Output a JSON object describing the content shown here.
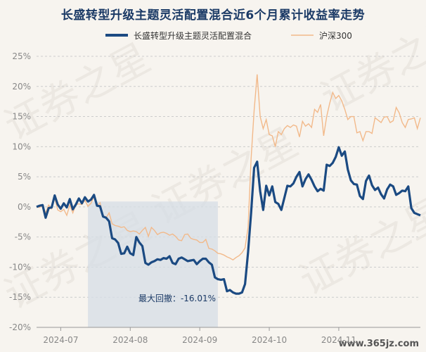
{
  "chart_data": {
    "type": "line",
    "title": "长盛转型升级主题灵活配置混合近6个月累计收益率走势",
    "ylim": [
      -20,
      25
    ],
    "yticks": [
      "25%",
      "20%",
      "15%",
      "10%",
      "5%",
      "0%",
      "-5%",
      "-10%",
      "-15%",
      "-20%"
    ],
    "ytick_values": [
      25,
      20,
      15,
      10,
      5,
      0,
      -5,
      -10,
      -15,
      -20
    ],
    "xtick_labels": [
      "2024-07",
      "2024-08",
      "2024-09",
      "2024-10",
      "2024-11"
    ],
    "xtick_positions": [
      8,
      31,
      54,
      77,
      100
    ],
    "x_count": 128,
    "grid": true,
    "legend_position": "top",
    "annotation": {
      "text": "最大回撤：-16.01%",
      "x_start": 17,
      "x_end": 60
    },
    "watermark": "证券之星",
    "watermark_corner": "www.365jz.com",
    "colors": {
      "fund": "#1b4a82",
      "index": "#f2b98a",
      "shade": "#d6dde6",
      "grid": "#cccccc"
    },
    "series": [
      {
        "name": "长盛转型升级主题灵活配置混合",
        "values": [
          0,
          0.2,
          0.3,
          -1.8,
          -0.2,
          -0.1,
          1.9,
          0.4,
          -0.3,
          0.6,
          -0.1,
          1.3,
          -0.4,
          0.4,
          1.4,
          0.6,
          1.6,
          0.9,
          1.2,
          2.0,
          0.2,
          0.1,
          -1.6,
          -1.8,
          -2.4,
          -5.2,
          -5.4,
          -6.0,
          -7.8,
          -7.7,
          -6.6,
          -7.7,
          -8.0,
          -5.0,
          -5.9,
          -6.5,
          -9.3,
          -9.6,
          -9.2,
          -9.0,
          -8.7,
          -8.8,
          -8.5,
          -8.6,
          -8.2,
          -9.3,
          -9.5,
          -8.6,
          -8.4,
          -8.7,
          -9.0,
          -8.9,
          -8.8,
          -9.5,
          -9.0,
          -8.6,
          -8.6,
          -9.2,
          -9.6,
          -11.7,
          -12.0,
          -12.1,
          -12.0,
          -14.0,
          -13.8,
          -14.2,
          -14.4,
          -14.4,
          -14.2,
          -12.8,
          -7.5,
          -1.0,
          6.5,
          7.5,
          2.6,
          -0.5,
          3.5,
          1.9,
          3.4,
          0.8,
          0.5,
          -0.5,
          1.5,
          3.5,
          3.4,
          3.9,
          5.0,
          5.8,
          3.4,
          4.6,
          5.4,
          4.5,
          3.4,
          2.6,
          3.0,
          2.7,
          7.0,
          6.8,
          7.3,
          8.3,
          9.9,
          8.5,
          9.2,
          6.2,
          4.4,
          3.8,
          3.7,
          1.8,
          1.3,
          4.3,
          5.2,
          3.6,
          2.8,
          3.2,
          2.1,
          1.4,
          2.9,
          3.7,
          3.4,
          2.0,
          2.3,
          2.7,
          2.6,
          3.4,
          -0.2,
          -1.0,
          -1.2,
          -1.4
        ]
      },
      {
        "name": "沪深300",
        "values": [
          0,
          -0.1,
          0.2,
          -1.0,
          0.3,
          -0.3,
          1.5,
          -0.5,
          -0.8,
          -0.4,
          -1.4,
          0.3,
          -1.0,
          0.4,
          0.5,
          0.4,
          1.1,
          0.1,
          0.6,
          1.7,
          0.2,
          0.7,
          -1.6,
          -1.8,
          -1.0,
          -2.8,
          -3.1,
          -3.2,
          -3.4,
          -3.3,
          -3.9,
          -4.1,
          -4.0,
          -4.1,
          -4.5,
          -3.9,
          -3.4,
          -4.9,
          -3.4,
          -3.9,
          -4.6,
          -4.3,
          -4.2,
          -4.4,
          -4.7,
          -4.5,
          -4.9,
          -5.5,
          -5.6,
          -4.6,
          -4.5,
          -5.2,
          -5.4,
          -5.5,
          -5.9,
          -5.9,
          -5.4,
          -6.9,
          -7.0,
          -7.3,
          -7.7,
          -7.8,
          -8.0,
          -8.3,
          -8.5,
          -8.8,
          -8.4,
          -8.1,
          -7.6,
          -6.8,
          -3.4,
          8.0,
          16.0,
          22.0,
          15.0,
          13.0,
          14.5,
          12.0,
          11.8,
          10.0,
          12.5,
          12.0,
          13.0,
          13.5,
          13.2,
          13.6,
          13.4,
          11.6,
          14.2,
          13.4,
          13.8,
          13.2,
          16.2,
          15.7,
          17.0,
          11.8,
          15.0,
          17.2,
          19.0,
          18.0,
          18.5,
          17.6,
          16.2,
          14.5,
          15.0,
          15.0,
          12.3,
          12.5,
          11.0,
          12.5,
          12.5,
          12.2,
          14.8,
          14.4,
          14.0,
          14.9,
          15.0,
          14.0,
          14.3,
          16.5,
          15.6,
          14.0,
          13.2,
          14.5,
          14.6,
          14.8,
          13.0,
          14.8
        ]
      }
    ]
  }
}
